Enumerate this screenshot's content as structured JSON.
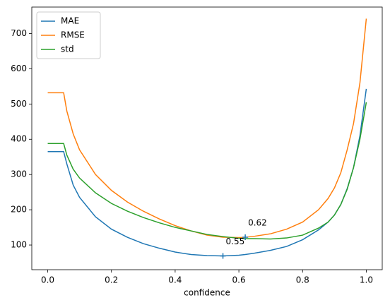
{
  "chart_data": {
    "type": "line",
    "xlabel": "confidence",
    "x": [
      0,
      0.05,
      0.06,
      0.08,
      0.1,
      0.15,
      0.2,
      0.25,
      0.3,
      0.35,
      0.4,
      0.45,
      0.5,
      0.55,
      0.6,
      0.62,
      0.65,
      0.7,
      0.75,
      0.8,
      0.85,
      0.88,
      0.9,
      0.92,
      0.94,
      0.96,
      0.98,
      1.0
    ],
    "series": [
      {
        "name": "MAE",
        "color": "#1f77b4",
        "values": [
          365,
          365,
          330,
          270,
          235,
          180,
          145,
          122,
          104,
          91,
          80,
          73,
          70,
          69,
          71,
          73,
          77,
          85,
          96,
          115,
          143,
          165,
          185,
          215,
          260,
          320,
          410,
          543
        ]
      },
      {
        "name": "RMSE",
        "color": "#ff7f0e",
        "values": [
          532,
          532,
          480,
          415,
          370,
          300,
          255,
          222,
          196,
          174,
          155,
          140,
          128,
          122,
          121,
          122,
          125,
          132,
          145,
          165,
          200,
          232,
          262,
          305,
          370,
          445,
          560,
          742
        ]
      },
      {
        "name": "std",
        "color": "#2ca02c",
        "values": [
          388,
          388,
          355,
          315,
          290,
          248,
          218,
          196,
          178,
          163,
          150,
          140,
          130,
          124,
          119,
          118,
          118,
          117,
          120,
          128,
          148,
          165,
          185,
          215,
          258,
          320,
          400,
          505
        ]
      }
    ],
    "annotations": [
      {
        "text": "0.55",
        "x": 0.55,
        "y": 69,
        "color": "#1f77b4"
      },
      {
        "text": "0.62",
        "x": 0.62,
        "y": 122,
        "color": "#1f77b4"
      }
    ],
    "xlim": [
      -0.05,
      1.05
    ],
    "xticks": [
      {
        "value": 0,
        "label": "0.0"
      },
      0.2,
      0.4,
      0.6,
      0.8,
      {
        "value": 1,
        "label": "1.0"
      }
    ],
    "ylim": [
      30,
      775
    ],
    "yticks": [
      100,
      200,
      300,
      400,
      500,
      600,
      700
    ],
    "legend": "upper left",
    "grid": false
  }
}
